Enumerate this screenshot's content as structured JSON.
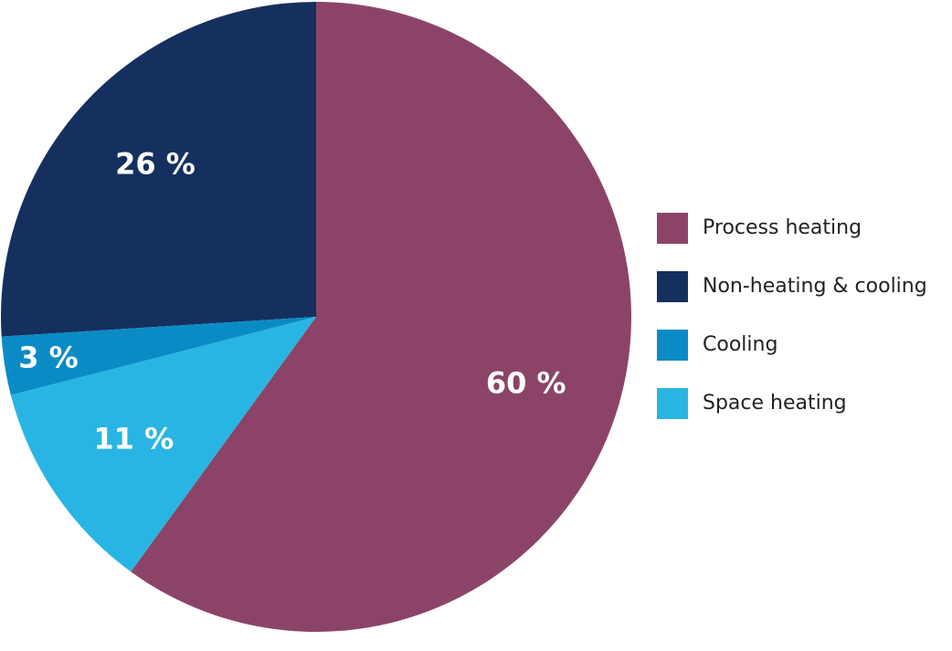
{
  "chart_data": {
    "type": "pie",
    "categories": [
      "Process heating",
      "Non-heating & cooling",
      "Cooling",
      "Space heating"
    ],
    "values": [
      60,
      26,
      3,
      11
    ],
    "value_labels": [
      "60 %",
      "26 %",
      "3 %",
      "11 %"
    ],
    "colors": [
      "#8b4468",
      "#15305e",
      "#0a8bc6",
      "#29b5e3"
    ],
    "legend": "right"
  }
}
